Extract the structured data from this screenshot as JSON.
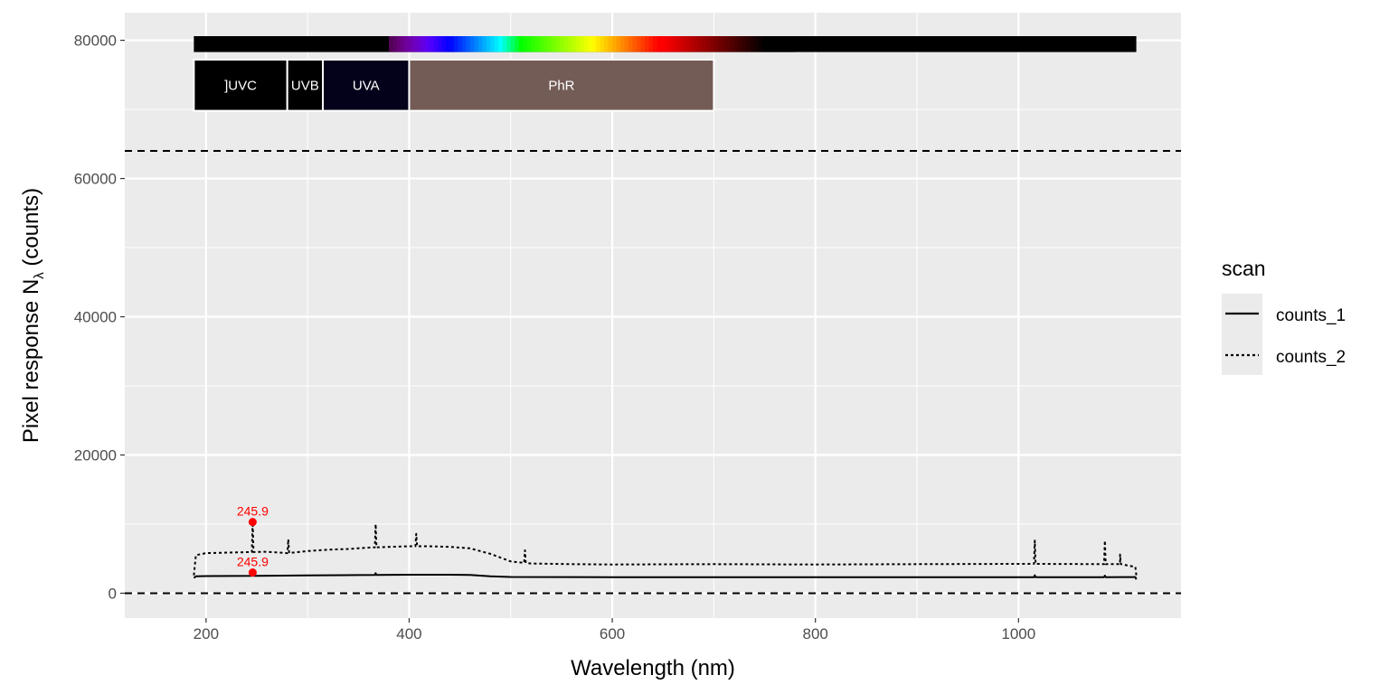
{
  "chart_data": {
    "type": "line",
    "xlabel": "Wavelength (nm)",
    "ylabel": "Pixel  response  N",
    "ylabel_subscript": "λ",
    "ylabel_unit": " (counts)",
    "xlim": [
      120,
      1160
    ],
    "ylim": [
      -3600,
      84000
    ],
    "x_ticks": [
      200,
      400,
      600,
      800,
      1000
    ],
    "y_ticks": [
      0,
      20000,
      40000,
      60000,
      80000
    ],
    "x_tick_labels": [
      "200",
      "400",
      "600",
      "800",
      "1000"
    ],
    "y_tick_labels": [
      "0",
      "20000",
      "40000",
      "60000",
      "80000"
    ],
    "grid": true,
    "legend": {
      "title": "scan",
      "position": "right"
    },
    "hlines": [
      {
        "y": 0,
        "linetype": "dashed"
      },
      {
        "y": 64000,
        "linetype": "dashed"
      }
    ],
    "series": [
      {
        "name": "counts_1",
        "linetype": "solid",
        "points": [
          [
            188,
            2200
          ],
          [
            190,
            2450
          ],
          [
            200,
            2480
          ],
          [
            250,
            2520
          ],
          [
            300,
            2580
          ],
          [
            350,
            2620
          ],
          [
            400,
            2680
          ],
          [
            440,
            2680
          ],
          [
            460,
            2650
          ],
          [
            480,
            2450
          ],
          [
            500,
            2350
          ],
          [
            600,
            2320
          ],
          [
            700,
            2320
          ],
          [
            800,
            2320
          ],
          [
            900,
            2320
          ],
          [
            1000,
            2320
          ],
          [
            1100,
            2330
          ],
          [
            1115,
            2340
          ],
          [
            1116,
            2000
          ]
        ],
        "spikes": [
          [
            245.9,
            3000
          ],
          [
            367,
            2900
          ],
          [
            1016,
            2600
          ],
          [
            1085,
            2550
          ]
        ]
      },
      {
        "name": "counts_2",
        "linetype": "dotted",
        "points": [
          [
            188,
            2600
          ],
          [
            190,
            5500
          ],
          [
            200,
            5800
          ],
          [
            230,
            5900
          ],
          [
            260,
            6000
          ],
          [
            280,
            5800
          ],
          [
            300,
            6100
          ],
          [
            320,
            6300
          ],
          [
            340,
            6400
          ],
          [
            360,
            6600
          ],
          [
            380,
            6700
          ],
          [
            400,
            6800
          ],
          [
            420,
            6800
          ],
          [
            440,
            6700
          ],
          [
            460,
            6500
          ],
          [
            480,
            5700
          ],
          [
            500,
            4600
          ],
          [
            520,
            4300
          ],
          [
            560,
            4200
          ],
          [
            600,
            4150
          ],
          [
            700,
            4200
          ],
          [
            800,
            4150
          ],
          [
            900,
            4200
          ],
          [
            1000,
            4250
          ],
          [
            1100,
            4200
          ],
          [
            1115,
            3800
          ],
          [
            1116,
            2600
          ]
        ],
        "spikes": [
          [
            245.9,
            10300
          ],
          [
            281,
            7800
          ],
          [
            367,
            10000
          ],
          [
            407,
            8600
          ],
          [
            514,
            6200
          ],
          [
            1016,
            7600
          ],
          [
            1085,
            7600
          ],
          [
            1100,
            5600
          ]
        ]
      }
    ],
    "peak_annotations": [
      {
        "x": 245.9,
        "y": 10300,
        "label": "245.9"
      },
      {
        "x": 245.9,
        "y": 3000,
        "label": "245.9"
      }
    ],
    "spectrum_bar": {
      "x_start": 188,
      "x_end": 1116,
      "y_bottom": 78300,
      "y_top": 80600
    },
    "wavebands": [
      {
        "name": "]UVC",
        "x_start": 188,
        "x_end": 280,
        "color": "#000000"
      },
      {
        "name": "UVB",
        "x_start": 280,
        "x_end": 315,
        "color": "#000000"
      },
      {
        "name": "UVA",
        "x_start": 315,
        "x_end": 400,
        "color": "#03021a"
      },
      {
        "name": "PhR",
        "x_start": 400,
        "x_end": 700,
        "color": "#735b56"
      }
    ],
    "wavebands_y": [
      69800,
      77200
    ]
  }
}
